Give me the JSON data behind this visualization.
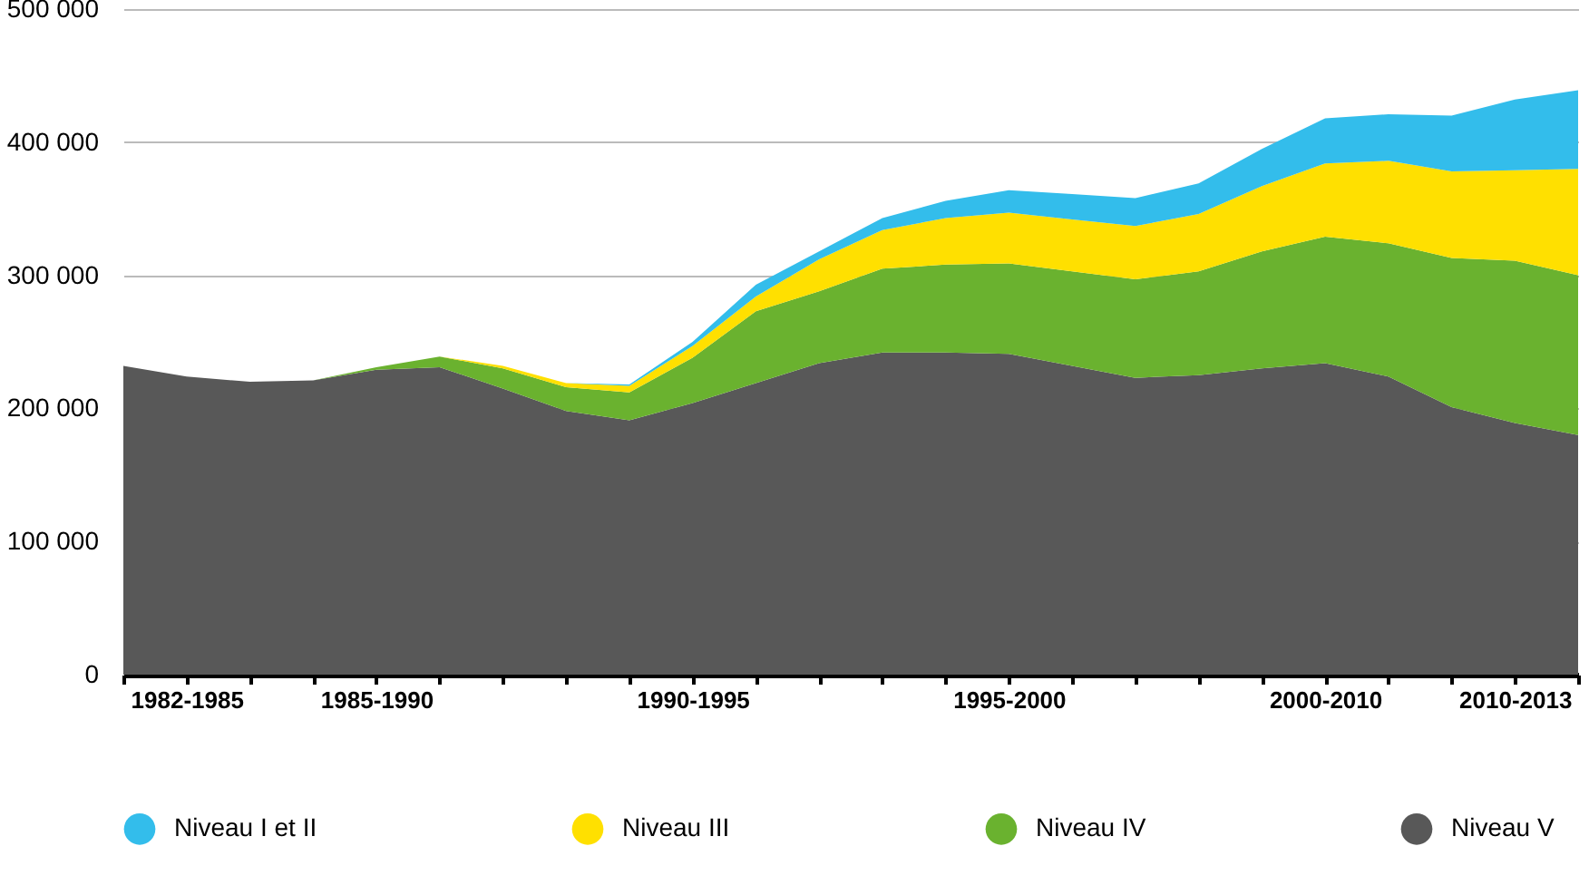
{
  "chart_data": {
    "type": "area",
    "stacked": true,
    "legend": "bottom",
    "grid": "y",
    "categories": [
      null,
      "1982-1985",
      null,
      null,
      "1985-1990",
      null,
      null,
      null,
      null,
      "1990-1995",
      null,
      null,
      null,
      null,
      "1995-2000",
      null,
      null,
      null,
      null,
      "2000-2010",
      null,
      null,
      "2010-2013",
      null
    ],
    "ylim": [
      0,
      500000
    ],
    "yticks": [
      {
        "value": 0,
        "label": "0"
      },
      {
        "value": 100000,
        "label": "100 000"
      },
      {
        "value": 200000,
        "label": "200 000"
      },
      {
        "value": 300000,
        "label": "300 000"
      },
      {
        "value": 400000,
        "label": "400 000"
      },
      {
        "value": 500000,
        "label": "500 000"
      }
    ],
    "series": [
      {
        "name": "Niveau V",
        "color": "#585858",
        "values": [
          232000,
          224000,
          220000,
          221000,
          229000,
          231000,
          215000,
          198000,
          191000,
          204000,
          219000,
          234000,
          242000,
          242000,
          241000,
          232000,
          223000,
          225000,
          230000,
          234000,
          224000,
          201000,
          189000,
          180000
        ]
      },
      {
        "name": "Niveau IV",
        "color": "#6ab22f",
        "values": [
          0,
          0,
          0,
          0,
          2000,
          8000,
          15000,
          18000,
          21000,
          34000,
          54000,
          54000,
          63000,
          66000,
          68000,
          71000,
          74000,
          78000,
          88000,
          95000,
          100000,
          112000,
          122000,
          120000
        ]
      },
      {
        "name": "Niveau III",
        "color": "#ffe000",
        "values": [
          0,
          0,
          0,
          0,
          0,
          0,
          2000,
          3000,
          5000,
          9000,
          11000,
          24000,
          29000,
          35000,
          38000,
          39000,
          40000,
          43000,
          49000,
          55000,
          62000,
          65000,
          68000,
          80000
        ]
      },
      {
        "name": "Niveau I et II",
        "color": "#33bdeb",
        "values": [
          0,
          0,
          0,
          0,
          0,
          0,
          0,
          0,
          1000,
          3000,
          9000,
          6000,
          9000,
          13000,
          17000,
          19000,
          21000,
          23000,
          28000,
          34000,
          35000,
          42000,
          53000,
          59000
        ]
      }
    ]
  }
}
